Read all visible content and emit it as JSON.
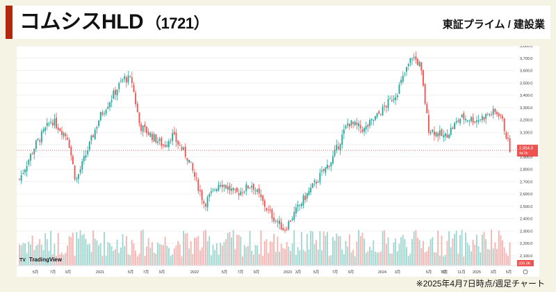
{
  "header": {
    "company_name": "コムシスHLD",
    "ticker_code": "（1721）",
    "market_sector": "東証プライム / 建設業",
    "accent_color": "#b2280f"
  },
  "footer": {
    "note": "※2025年4月7日時点/週足チャート"
  },
  "chart_data": {
    "type": "candlestick",
    "title": "",
    "interval": "weekly",
    "watermark": "TradingView",
    "up_color": "#26a69a",
    "down_color": "#ef5350",
    "ylim": [
      2020,
      3800
    ],
    "yticks": [
      2100,
      2200,
      2300,
      2400,
      2500,
      2600,
      2700,
      2800,
      2900,
      3000,
      3100,
      3200,
      3300,
      3400,
      3500,
      3600,
      3700,
      3800
    ],
    "ytick_labels": [
      "2,100.0",
      "2,200.0",
      "2,300.0",
      "2,400.0",
      "2,500.0",
      "2,600.0",
      "2,700.0",
      "2,800.0",
      "2,900.0",
      "3,000.0",
      "3,100.0",
      "3,200.0",
      "3,300.0",
      "3,400.0",
      "3,500.0",
      "3,600.0",
      "3,700.0",
      "3,800.0"
    ],
    "xticks": [
      "5月",
      "7月",
      "9月",
      "2021",
      "5月",
      "7月",
      "9月",
      "2022",
      "5月",
      "7月",
      "9月",
      "2023",
      "3月",
      "5月",
      "7月",
      "9月",
      "2024",
      "3月",
      "5月",
      "7月",
      "9月",
      "11月",
      "2025",
      "3月",
      "5月"
    ],
    "last_price": 2954,
    "last_price_label": "2,954.0",
    "countdown_label": "4d 2h",
    "volume_label": "339.9K",
    "anchors": [
      [
        "2020-03",
        2720
      ],
      [
        "2020-05",
        3000
      ],
      [
        "2020-07",
        3200
      ],
      [
        "2020-09",
        3060
      ],
      [
        "2020-10",
        2700
      ],
      [
        "2021-01",
        3230
      ],
      [
        "2021-04",
        3540
      ],
      [
        "2021-05",
        3520
      ],
      [
        "2021-06",
        3150
      ],
      [
        "2021-09",
        2990
      ],
      [
        "2021-10",
        3080
      ],
      [
        "2021-12",
        2890
      ],
      [
        "2022-02",
        2520
      ],
      [
        "2022-04",
        2700
      ],
      [
        "2022-06",
        2600
      ],
      [
        "2022-08",
        2680
      ],
      [
        "2022-10",
        2460
      ],
      [
        "2022-12",
        2310
      ],
      [
        "2023-02",
        2520
      ],
      [
        "2023-04",
        2700
      ],
      [
        "2023-06",
        2880
      ],
      [
        "2023-08",
        3180
      ],
      [
        "2023-10",
        3120
      ],
      [
        "2023-12",
        3260
      ],
      [
        "2024-02",
        3420
      ],
      [
        "2024-04",
        3720
      ],
      [
        "2024-05",
        3640
      ],
      [
        "2024-06",
        3130
      ],
      [
        "2024-08",
        3060
      ],
      [
        "2024-10",
        3220
      ],
      [
        "2024-12",
        3200
      ],
      [
        "2025-02",
        3260
      ],
      [
        "2025-03",
        3250
      ],
      [
        "2025-04",
        2954
      ]
    ]
  }
}
